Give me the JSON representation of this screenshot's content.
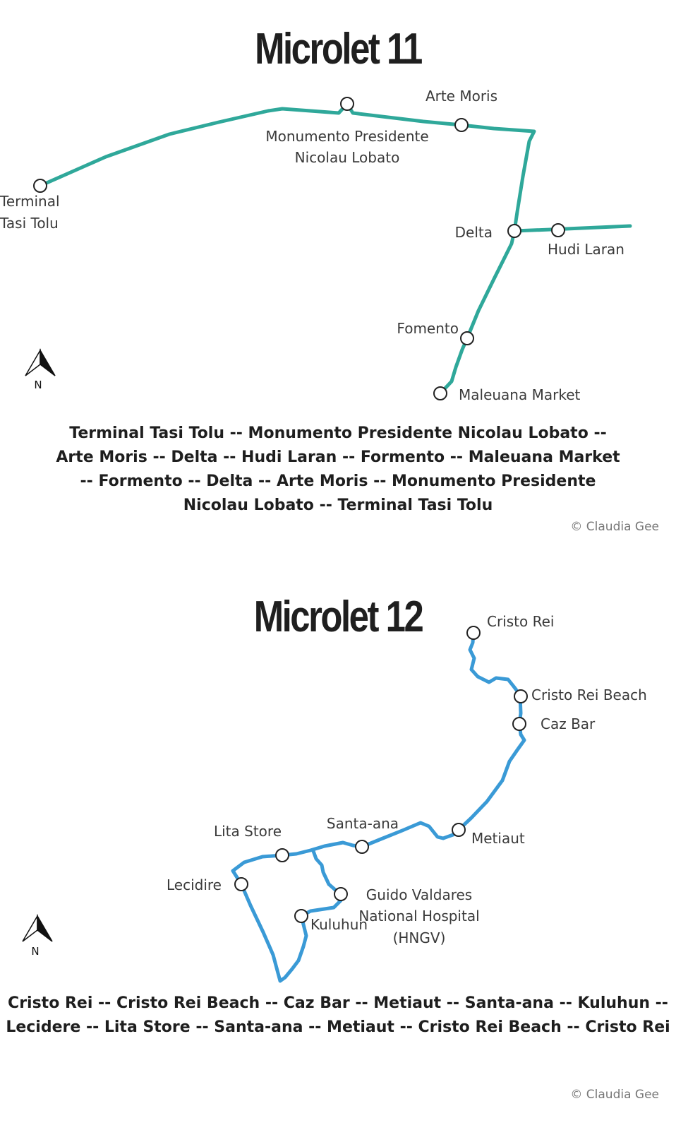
{
  "microlet11": {
    "title": "Microlet 11",
    "route_color": "#2fa89a",
    "stops": {
      "terminal_line1": "Terminal",
      "terminal_line2": "Tasi Tolu",
      "monumento_line1": "Monumento Presidente",
      "monumento_line2": "Nicolau Lobato",
      "arte_moris": "Arte Moris",
      "delta": "Delta",
      "hudi_laran": "Hudi Laran",
      "fomento": "Fomento",
      "maleuana": "Maleuana Market"
    },
    "compass": "N",
    "route_text": "Terminal Tasi Tolu -- Monumento Presidente Nicolau Lobato -- Arte Moris -- Delta -- Hudi Laran -- Formento -- Maleuana Market -- Formento -- Delta -- Arte Moris -- Monumento Presidente Nicolau Lobato -- Terminal Tasi Tolu",
    "credit": "© Claudia Gee"
  },
  "microlet12": {
    "title": "Microlet 12",
    "route_color": "#3a9ad6",
    "stops": {
      "cristo_rei": "Cristo Rei",
      "cristo_rei_beach": "Cristo Rei Beach",
      "caz_bar": "Caz Bar",
      "metiaut": "Metiaut",
      "santa_ana": "Santa-ana",
      "lita_store": "Lita Store",
      "lecidire": "Lecidire",
      "hospital_line1": "Guido Valdares",
      "hospital_line2": "National Hospital",
      "hospital_line3": "(HNGV)",
      "kuluhun": "Kuluhun"
    },
    "compass": "N",
    "route_text": "Cristo Rei -- Cristo Rei Beach -- Caz Bar -- Metiaut -- Santa-ana -- Kuluhun -- Lecidere -- Lita Store -- Santa-ana -- Metiaut -- Cristo Rei Beach -- Cristo Rei",
    "credit": "© Claudia Gee"
  }
}
